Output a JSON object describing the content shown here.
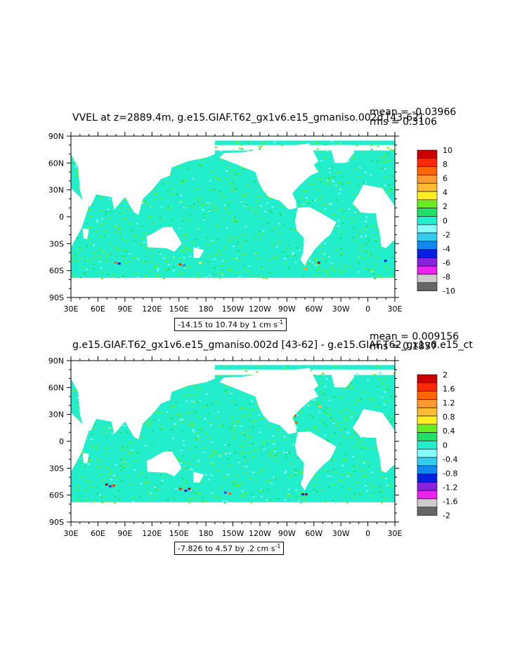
{
  "chart_data": [
    {
      "type": "heatmap",
      "title": "VVEL at z=2889.4m, g.e15.GIAF.T62_gx1v6.e15_gmaniso.002d [43-62]",
      "mean_label": "mean = -0.03966",
      "rms_label": "rms = 0.3106",
      "caption_prefix": "-14.15 to 10.74 by 1 cm s",
      "caption_exp": "-1",
      "x_ticks": [
        "30E",
        "60E",
        "90E",
        "120E",
        "150E",
        "180",
        "150W",
        "120W",
        "90W",
        "60W",
        "30W",
        "0",
        "30E"
      ],
      "y_ticks": [
        "90N",
        "60N",
        "30N",
        "0",
        "30S",
        "60S",
        "90S"
      ],
      "xlim": [
        30,
        390
      ],
      "ylim": [
        -90,
        90
      ],
      "legend_labels": [
        "10",
        "8",
        "6",
        "4",
        "2",
        "0",
        "-2",
        "-4",
        "-6",
        "-8",
        "-10"
      ],
      "legend_colors": [
        "#cc0000",
        "#ff2a00",
        "#ff6600",
        "#ff9933",
        "#ffbb33",
        "#ffee22",
        "#66ee22",
        "#22dd66",
        "#22eecc",
        "#88ffff",
        "#33ccee",
        "#1188ee",
        "#0022dd",
        "#8822dd",
        "#ee22ee",
        "#cccccc",
        "#666666"
      ]
    },
    {
      "type": "heatmap",
      "title": "g.e15.GIAF.T62_gx1v6.e15_gmaniso.002d [43-62] - g.e15.GIAF.T62_gx1v6.e15_ct",
      "mean_label": "mean = 0.009156",
      "rms_label": "rms = 0.1837",
      "caption_prefix": "-7.826 to 4.57 by .2 cm s",
      "caption_exp": "-1",
      "x_ticks": [
        "30E",
        "60E",
        "90E",
        "120E",
        "150E",
        "180",
        "150W",
        "120W",
        "90W",
        "60W",
        "30W",
        "0",
        "30E"
      ],
      "y_ticks": [
        "90N",
        "60N",
        "30N",
        "0",
        "30S",
        "60S",
        "90S"
      ],
      "xlim": [
        30,
        390
      ],
      "ylim": [
        -90,
        90
      ],
      "legend_labels": [
        "2",
        "1.6",
        "1.2",
        "0.8",
        "0.4",
        "0",
        "-0.4",
        "-0.8",
        "-1.2",
        "-1.6",
        "-2"
      ],
      "legend_colors": [
        "#cc0000",
        "#ff2a00",
        "#ff6600",
        "#ff9933",
        "#ffbb33",
        "#ffee22",
        "#66ee22",
        "#22dd66",
        "#22eecc",
        "#88ffff",
        "#33ccee",
        "#1188ee",
        "#0022dd",
        "#8822dd",
        "#ee22ee",
        "#cccccc",
        "#666666"
      ]
    }
  ]
}
